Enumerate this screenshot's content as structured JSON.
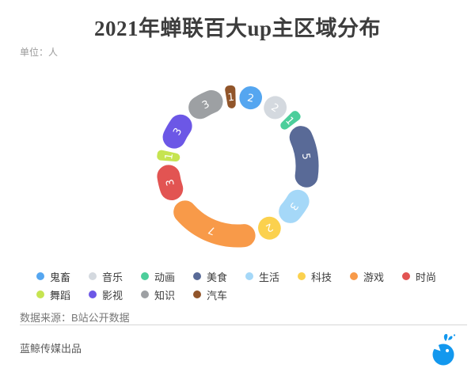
{
  "unit_label": "单位：人",
  "chart_data": {
    "type": "pie",
    "variant": "donut-rounded-segments",
    "title": "2021年蝉联百大up主区域分布",
    "unit": "人",
    "total": 33,
    "start_angle": "top-clockwise",
    "categories": [
      "鬼畜",
      "音乐",
      "动画",
      "美食",
      "生活",
      "科技",
      "游戏",
      "时尚",
      "舞蹈",
      "影视",
      "知识",
      "汽车"
    ],
    "values": [
      2,
      2,
      1,
      5,
      3,
      2,
      7,
      3,
      1,
      3,
      3,
      1
    ],
    "colors": [
      "#55A6F0",
      "#D4D9DF",
      "#4CCE9B",
      "#596A97",
      "#A5D8F8",
      "#FBD14E",
      "#F89A49",
      "#E25452",
      "#C6E451",
      "#6C57E6",
      "#9DA0A3",
      "#91552A"
    ],
    "value_labels": "inside-white-tangential",
    "legend_position": "bottom-left-two-rows"
  },
  "source_label": "数据来源：B站公开数据",
  "credit_label": "蓝鲸传媒出品",
  "logo": {
    "name": "blue-whale",
    "color": "#1398EE"
  }
}
